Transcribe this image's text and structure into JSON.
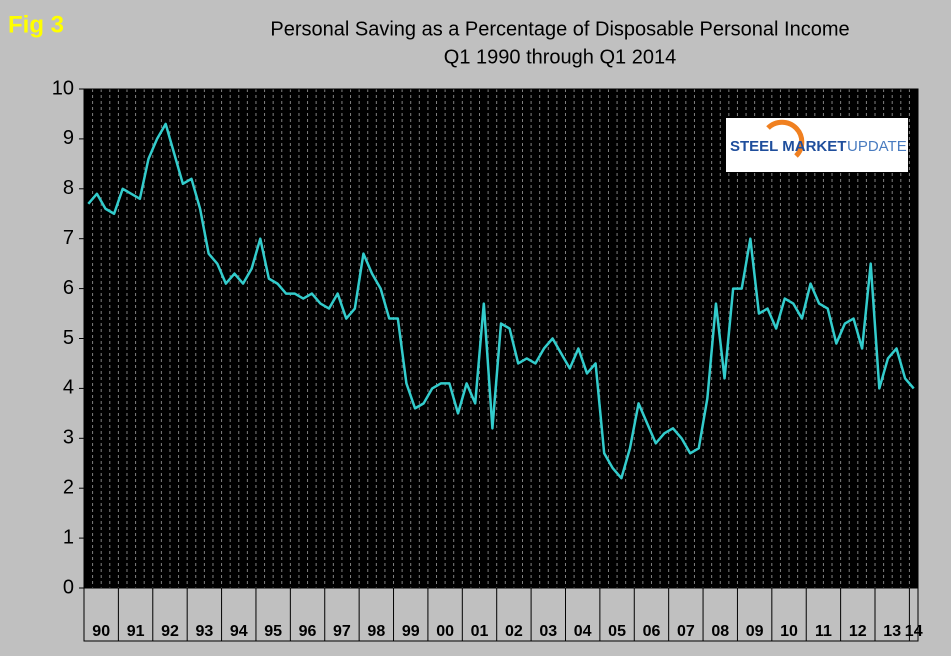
{
  "chart_data": {
    "type": "line",
    "label": "Fig 3",
    "title": "Personal Saving as a Percentage of Disposable Personal Income",
    "subtitle": "Q1 1990 through Q1 2014",
    "logo": [
      "STEEL MARKET",
      "UPDATE"
    ],
    "categories": [
      "90",
      null,
      null,
      null,
      "91",
      null,
      null,
      null,
      "92",
      null,
      null,
      null,
      "93",
      null,
      null,
      null,
      "94",
      null,
      null,
      null,
      "95",
      null,
      null,
      null,
      "96",
      null,
      null,
      null,
      "97",
      null,
      null,
      null,
      "98",
      null,
      null,
      null,
      "99",
      null,
      null,
      null,
      "00",
      null,
      null,
      null,
      "01",
      null,
      null,
      null,
      "02",
      null,
      null,
      null,
      "03",
      null,
      null,
      null,
      "04",
      null,
      null,
      null,
      "05",
      null,
      null,
      null,
      "06",
      null,
      null,
      null,
      "07",
      null,
      null,
      null,
      "08",
      null,
      null,
      null,
      "09",
      null,
      null,
      null,
      "10",
      null,
      null,
      null,
      "11",
      null,
      null,
      null,
      "12",
      null,
      null,
      null,
      "13",
      null,
      null,
      null,
      "14"
    ],
    "values": [
      7.7,
      7.9,
      7.6,
      7.5,
      8.0,
      7.9,
      7.8,
      8.6,
      9.0,
      9.3,
      8.7,
      8.1,
      8.2,
      7.6,
      6.7,
      6.5,
      6.1,
      6.3,
      6.1,
      6.4,
      7.0,
      6.2,
      6.1,
      5.9,
      5.9,
      5.8,
      5.9,
      5.7,
      5.6,
      5.9,
      5.4,
      5.6,
      6.7,
      6.3,
      6.0,
      5.4,
      5.4,
      4.1,
      3.6,
      3.7,
      4.0,
      4.1,
      4.1,
      3.5,
      4.1,
      3.7,
      5.7,
      3.2,
      5.3,
      5.2,
      4.5,
      4.6,
      4.5,
      4.8,
      5.0,
      4.7,
      4.4,
      4.8,
      4.3,
      4.5,
      2.7,
      2.4,
      2.2,
      2.8,
      3.7,
      3.3,
      2.9,
      3.1,
      3.2,
      3.0,
      2.7,
      2.8,
      3.8,
      5.7,
      4.2,
      6.0,
      6.0,
      7.0,
      5.5,
      5.6,
      5.2,
      5.8,
      5.7,
      5.4,
      6.1,
      5.7,
      5.6,
      4.9,
      5.3,
      5.4,
      4.8,
      6.5,
      4.0,
      4.6,
      4.8,
      4.2,
      4.0
    ],
    "color": "#33cccc",
    "ylim": [
      0,
      10
    ],
    "yticks": [
      0,
      1,
      2,
      3,
      4,
      5,
      6,
      7,
      8,
      9,
      10
    ],
    "grid": true
  }
}
